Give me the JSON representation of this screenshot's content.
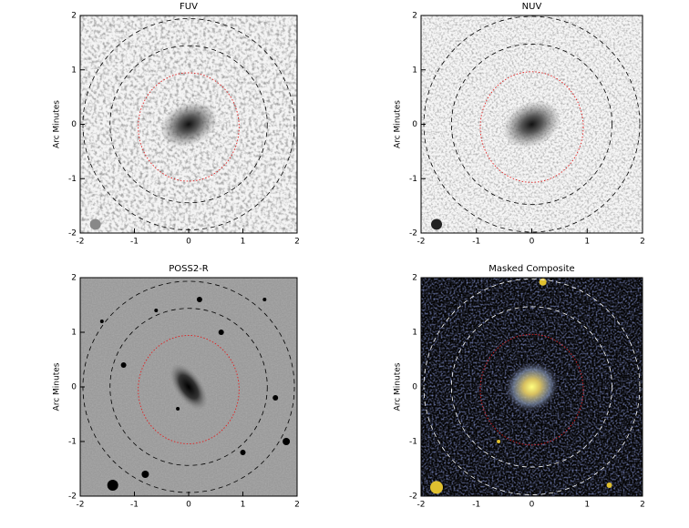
{
  "chart_data": [
    {
      "type": "image",
      "title": "FUV",
      "ylabel": "Arc Minutes",
      "xlim": [
        -2,
        2
      ],
      "ylim": [
        -2,
        2
      ],
      "xticks": [
        -2,
        -1,
        0,
        1,
        2
      ],
      "yticks": [
        -2,
        -1,
        0,
        1,
        2
      ]
    },
    {
      "type": "image",
      "title": "NUV",
      "ylabel": "Arc Minutes",
      "xlim": [
        -2,
        2
      ],
      "ylim": [
        -2,
        2
      ],
      "xticks": [
        -2,
        -1,
        0,
        1,
        2
      ],
      "yticks": [
        -2,
        -1,
        0,
        1,
        2
      ]
    },
    {
      "type": "image",
      "title": "POSS2-R",
      "ylabel": "Arc Minutes",
      "xlim": [
        -2,
        2
      ],
      "ylim": [
        -2,
        2
      ],
      "xticks": [
        -2,
        -1,
        0,
        1,
        2
      ],
      "yticks": [
        -2,
        -1,
        0,
        1,
        2
      ]
    },
    {
      "type": "image",
      "title": "Masked Composite",
      "ylabel": "Arc Minutes",
      "xlim": [
        -2,
        2
      ],
      "ylim": [
        -2,
        2
      ],
      "xticks": [
        -2,
        -1,
        0,
        1,
        2
      ],
      "yticks": [
        -2,
        -1,
        0,
        1,
        2
      ]
    }
  ]
}
